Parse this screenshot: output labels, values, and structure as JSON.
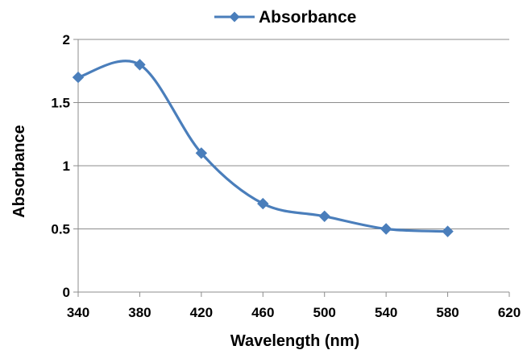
{
  "chart_data": {
    "type": "line",
    "title": "",
    "xlabel": "Wavelength (nm)",
    "ylabel": "Absorbance",
    "xlim": [
      340,
      620
    ],
    "ylim": [
      0,
      2
    ],
    "x_ticks": [
      340,
      380,
      420,
      460,
      500,
      540,
      580,
      620
    ],
    "y_ticks": [
      0,
      0.5,
      1,
      1.5,
      2
    ],
    "grid": "horizontal",
    "legend_position": "top",
    "smooth": true,
    "series": [
      {
        "name": "Absorbance",
        "color": "#4A7EBB",
        "marker": "diamond",
        "x": [
          340,
          380,
          420,
          460,
          500,
          540,
          580
        ],
        "values": [
          1.7,
          1.8,
          1.1,
          0.7,
          0.6,
          0.5,
          0.48
        ]
      }
    ]
  }
}
